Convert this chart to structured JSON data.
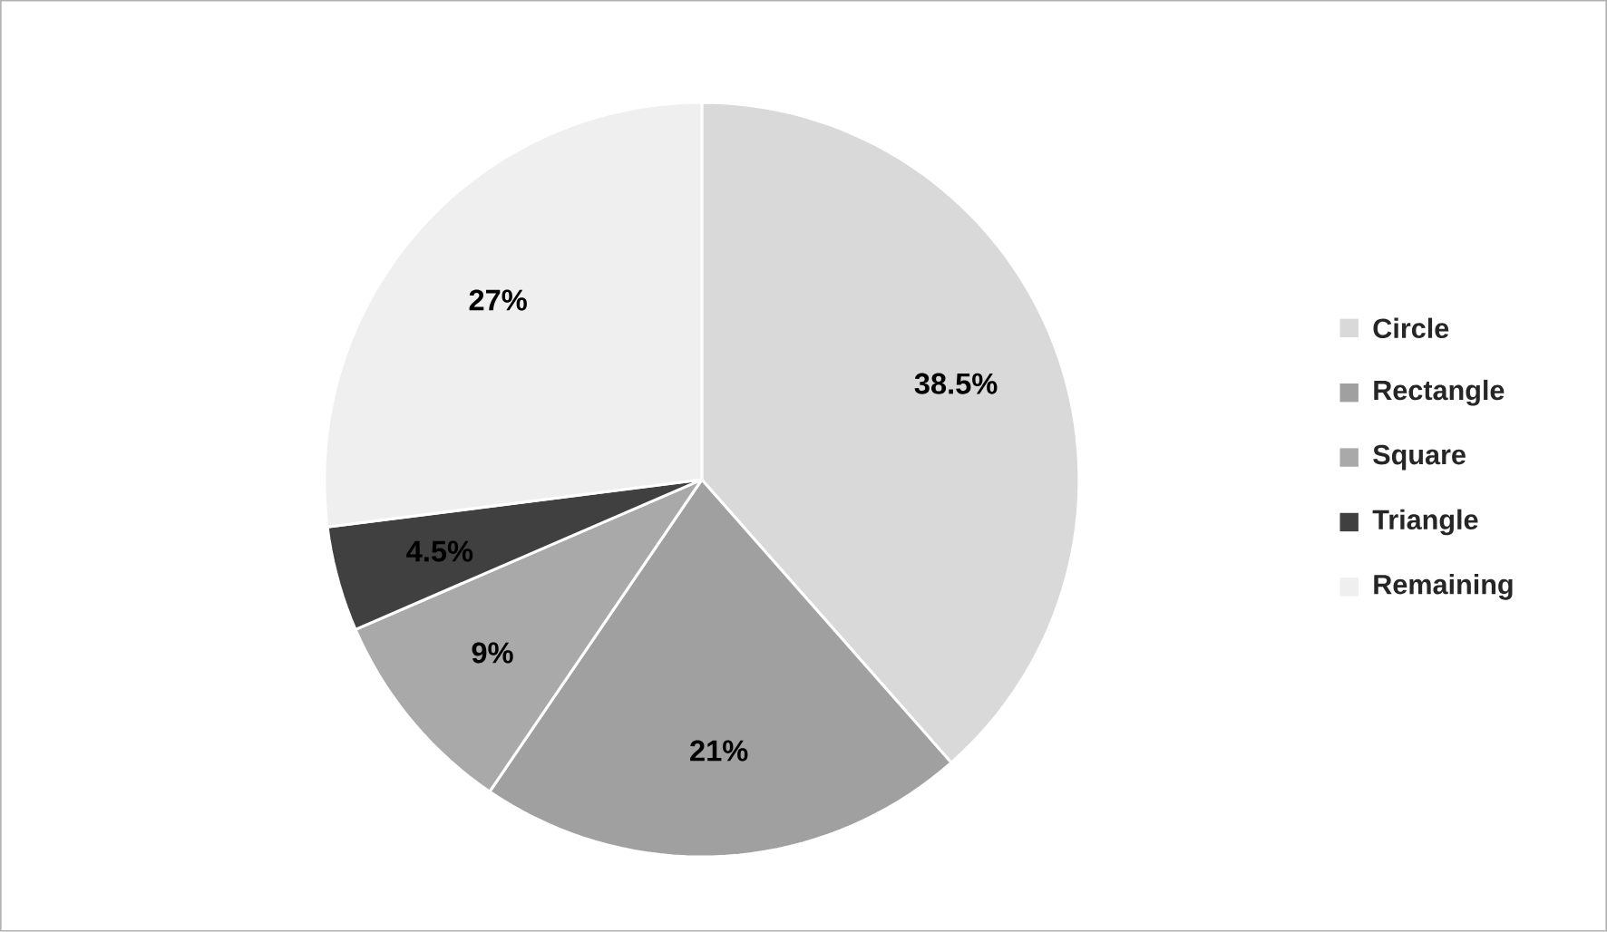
{
  "chart_data": {
    "type": "pie",
    "categories": [
      "Circle",
      "Rectangle",
      "Square",
      "Triangle",
      "Remaining"
    ],
    "values": [
      38.5,
      21,
      9,
      4.5,
      27
    ],
    "value_labels": [
      "38.5%",
      "21%",
      "9%",
      "4.5%",
      "27%"
    ],
    "colors": [
      "#d9d9d9",
      "#a0a0a0",
      "#a9a9a9",
      "#404040",
      "#efefef"
    ],
    "legend": "right"
  }
}
